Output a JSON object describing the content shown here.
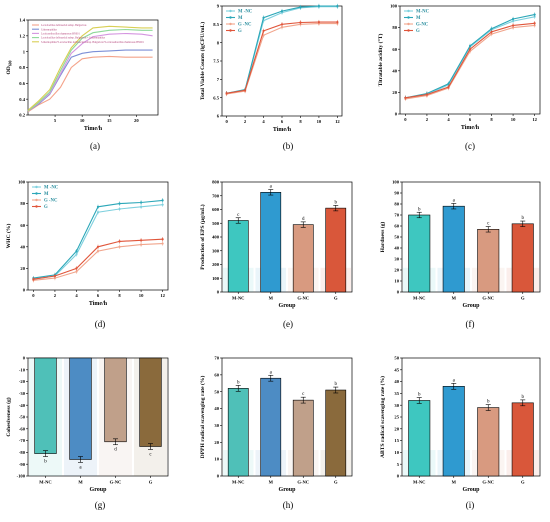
{
  "panel_labels": [
    "(a)",
    "(b)",
    "(c)",
    "(d)",
    "(e)",
    "(f)",
    "(g)",
    "(h)",
    "(i)"
  ],
  "chart_data": [
    {
      "id": "a",
      "type": "line",
      "ylabel": "OD600",
      "xlabel": "Time/h",
      "xlim": [
        0,
        24
      ],
      "ylim": [
        0.2,
        1.4
      ],
      "xticks": [
        5,
        10,
        15,
        20,
        25
      ],
      "yticks": [
        0.2,
        0.4,
        0.6,
        0.8,
        1.0,
        1.2,
        1.4
      ],
      "legend_position": "top-left",
      "series": [
        {
          "name": "Lactobacillus delbrueckii subsp. Bulgaricus",
          "color": "#f4a38a",
          "x": [
            0,
            2,
            4,
            6,
            8,
            10,
            12,
            15,
            18,
            21,
            23
          ],
          "y": [
            0.24,
            0.33,
            0.4,
            0.55,
            0.8,
            0.91,
            0.93,
            0.94,
            0.93,
            0.93,
            0.93
          ]
        },
        {
          "name": "S.thermophilus",
          "color": "#7c8fd6",
          "x": [
            0,
            2,
            4,
            6,
            8,
            10,
            12,
            15,
            18,
            21,
            23
          ],
          "y": [
            0.25,
            0.34,
            0.46,
            0.7,
            0.93,
            0.98,
            1.0,
            1.01,
            1.02,
            1.02,
            1.02
          ]
        },
        {
          "name": "Lacticaseibacillus rhamnosus HN001",
          "color": "#d495e0",
          "x": [
            0,
            2,
            4,
            6,
            8,
            10,
            12,
            15,
            18,
            21,
            23
          ],
          "y": [
            0.25,
            0.35,
            0.47,
            0.72,
            0.98,
            1.1,
            1.19,
            1.22,
            1.23,
            1.22,
            1.2
          ]
        },
        {
          "name": "Lactobacillus delbrueckii subsp. Bulgaricus + S.thermophilus",
          "color": "#8fd99a",
          "x": [
            0,
            2,
            4,
            6,
            8,
            10,
            12,
            15,
            18,
            21,
            23
          ],
          "y": [
            0.25,
            0.36,
            0.49,
            0.76,
            1.02,
            1.17,
            1.24,
            1.27,
            1.28,
            1.27,
            1.27
          ]
        },
        {
          "name": "S.thermophilus+Lactobacillus delbrueckii subsp. Bulgaricus+Lacticaseibacillus rhamnosus HN001",
          "color": "#d8cf55",
          "x": [
            0,
            2,
            4,
            6,
            8,
            10,
            12,
            15,
            18,
            21,
            23
          ],
          "y": [
            0.26,
            0.38,
            0.52,
            0.8,
            1.05,
            1.2,
            1.3,
            1.32,
            1.31,
            1.3,
            1.3
          ]
        }
      ]
    },
    {
      "id": "b",
      "type": "line",
      "ylabel": "Total Viable Counts (lgCFU/mL)",
      "xlabel": "Time/h",
      "xlim": [
        -0.5,
        12.5
      ],
      "ylim": [
        6.0,
        9.0
      ],
      "xticks": [
        0,
        2,
        4,
        6,
        8,
        10,
        12
      ],
      "yticks": [
        6.0,
        6.5,
        7.0,
        7.5,
        8.0,
        8.5,
        9.0
      ],
      "legend_position": "top-left",
      "series": [
        {
          "name": "M -NC",
          "color": "#7ed0de",
          "x": [
            0,
            2,
            4,
            6,
            8,
            10,
            12
          ],
          "y": [
            6.62,
            6.7,
            8.6,
            8.82,
            8.95,
            8.98,
            8.98
          ]
        },
        {
          "name": "M",
          "color": "#2ba7b8",
          "x": [
            0,
            2,
            4,
            6,
            8,
            10,
            12
          ],
          "y": [
            6.62,
            6.72,
            8.68,
            8.86,
            8.97,
            9.0,
            9.0
          ]
        },
        {
          "name": "G -NC",
          "color": "#f1a58c",
          "x": [
            0,
            2,
            4,
            6,
            8,
            10,
            12
          ],
          "y": [
            6.6,
            6.68,
            8.2,
            8.42,
            8.5,
            8.52,
            8.52
          ]
        },
        {
          "name": "G",
          "color": "#e0553a",
          "x": [
            0,
            2,
            4,
            6,
            8,
            10,
            12
          ],
          "y": [
            6.62,
            6.7,
            8.32,
            8.5,
            8.55,
            8.56,
            8.56
          ]
        }
      ]
    },
    {
      "id": "c",
      "type": "line",
      "ylabel": "Titratable acidity (°T)",
      "xlabel": "Time/h",
      "xlim": [
        -0.5,
        12.5
      ],
      "ylim": [
        0,
        100
      ],
      "xticks": [
        0,
        2,
        4,
        6,
        8,
        10,
        12
      ],
      "yticks": [
        0,
        20,
        40,
        60,
        80,
        100
      ],
      "legend_position": "top-left",
      "series": [
        {
          "name": "M-NC",
          "color": "#7ed0de",
          "x": [
            0,
            2,
            4,
            6,
            8,
            10,
            12
          ],
          "y": [
            15,
            18,
            27,
            62,
            78,
            86,
            90
          ]
        },
        {
          "name": "M",
          "color": "#2ba7b8",
          "x": [
            0,
            2,
            4,
            6,
            8,
            10,
            12
          ],
          "y": [
            15,
            19,
            28,
            63,
            79,
            88,
            92
          ]
        },
        {
          "name": "G-NC",
          "color": "#f1a58c",
          "x": [
            0,
            2,
            4,
            6,
            8,
            10,
            12
          ],
          "y": [
            14,
            17,
            24,
            58,
            74,
            80,
            82
          ]
        },
        {
          "name": "G",
          "color": "#e0553a",
          "x": [
            0,
            2,
            4,
            6,
            8,
            10,
            12
          ],
          "y": [
            15,
            18,
            25,
            60,
            76,
            82,
            84
          ]
        }
      ]
    },
    {
      "id": "d",
      "type": "line",
      "ylabel": "WHC (%)",
      "xlabel": "Time/h",
      "xlim": [
        -0.5,
        12.5
      ],
      "ylim": [
        0,
        100
      ],
      "xticks": [
        0,
        2,
        4,
        6,
        8,
        10,
        12
      ],
      "yticks": [
        0,
        20,
        40,
        60,
        80,
        100
      ],
      "legend_position": "top-left",
      "series": [
        {
          "name": "M -NC",
          "color": "#7ed0de",
          "x": [
            0,
            2,
            4,
            6,
            8,
            10,
            12
          ],
          "y": [
            10,
            13,
            33,
            72,
            75,
            77,
            79
          ]
        },
        {
          "name": "M",
          "color": "#2ba7b8",
          "x": [
            0,
            2,
            4,
            6,
            8,
            10,
            12
          ],
          "y": [
            11,
            14,
            36,
            77,
            80,
            81,
            83
          ]
        },
        {
          "name": "G -NC",
          "color": "#f1a58c",
          "x": [
            0,
            2,
            4,
            6,
            8,
            10,
            12
          ],
          "y": [
            9,
            11,
            17,
            36,
            40,
            42,
            43
          ]
        },
        {
          "name": "G",
          "color": "#e0553a",
          "x": [
            0,
            2,
            4,
            6,
            8,
            10,
            12
          ],
          "y": [
            10,
            13,
            20,
            40,
            45,
            46,
            47
          ]
        }
      ]
    },
    {
      "id": "e",
      "type": "bar",
      "ylabel": "Production of EPS (μg/mL)",
      "xlabel": "Group",
      "ylim": [
        0,
        800
      ],
      "yticks": [
        0,
        100,
        200,
        300,
        400,
        500,
        600,
        700,
        800
      ],
      "categories": [
        "M-NC",
        "M",
        "G-NC",
        "G"
      ],
      "values": [
        520,
        725,
        490,
        610
      ],
      "letters": [
        "c",
        "a",
        "d",
        "b"
      ],
      "colors": [
        "#3ec7c0",
        "#2f9ad0",
        "#d89a80",
        "#d9573a"
      ]
    },
    {
      "id": "f",
      "type": "bar",
      "ylabel": "Hardness (g)",
      "xlabel": "Group",
      "ylim": [
        0,
        100
      ],
      "yticks": [
        0,
        10,
        20,
        30,
        40,
        50,
        60,
        70,
        80,
        90,
        100
      ],
      "categories": [
        "M-NC",
        "M",
        "G-NC",
        "G"
      ],
      "values": [
        70,
        78,
        57,
        62
      ],
      "letters": [
        "b",
        "a",
        "c",
        "b"
      ],
      "colors": [
        "#3ec7c0",
        "#2f9ad0",
        "#d89a80",
        "#d9573a"
      ]
    },
    {
      "id": "g",
      "type": "bar",
      "ylabel": "Cohesiveness (g)",
      "xlabel": "Group",
      "ylim": [
        -100,
        0
      ],
      "yticks": [
        -100,
        -90,
        -80,
        -70,
        -60,
        -50,
        -40,
        -30,
        -20,
        -10,
        0
      ],
      "categories": [
        "M-NC",
        "M",
        "G-NC",
        "G"
      ],
      "values": [
        -81,
        -86,
        -71,
        -75
      ],
      "letters": [
        "b",
        "a",
        "d",
        "c"
      ],
      "colors": [
        "#4fc0b8",
        "#4d8cc4",
        "#c0a08a",
        "#8a6a3c"
      ]
    },
    {
      "id": "h",
      "type": "bar",
      "ylabel": "DPPH radical scavenging rate (%)",
      "xlabel": "Group",
      "ylim": [
        0,
        70
      ],
      "yticks": [
        0,
        10,
        20,
        30,
        40,
        50,
        60,
        70
      ],
      "categories": [
        "M-NC",
        "M",
        "G-NC",
        "G"
      ],
      "values": [
        52,
        58,
        45,
        51
      ],
      "letters": [
        "b",
        "a",
        "c",
        "b"
      ],
      "colors": [
        "#4fc0b8",
        "#4d8cc4",
        "#c0a08a",
        "#8a6a3c"
      ]
    },
    {
      "id": "i",
      "type": "bar",
      "ylabel": "ABTS radical scavenging rate (%)",
      "xlabel": "Group",
      "ylim": [
        0,
        50
      ],
      "yticks": [
        0,
        5,
        10,
        15,
        20,
        25,
        30,
        35,
        40,
        45,
        50
      ],
      "categories": [
        "M-NC",
        "M",
        "G-NC",
        "G"
      ],
      "values": [
        32,
        38,
        29,
        31
      ],
      "letters": [
        "b",
        "a",
        "b",
        "b"
      ],
      "colors": [
        "#3ec7c0",
        "#2f9ad0",
        "#d89a80",
        "#d9573a"
      ]
    }
  ]
}
